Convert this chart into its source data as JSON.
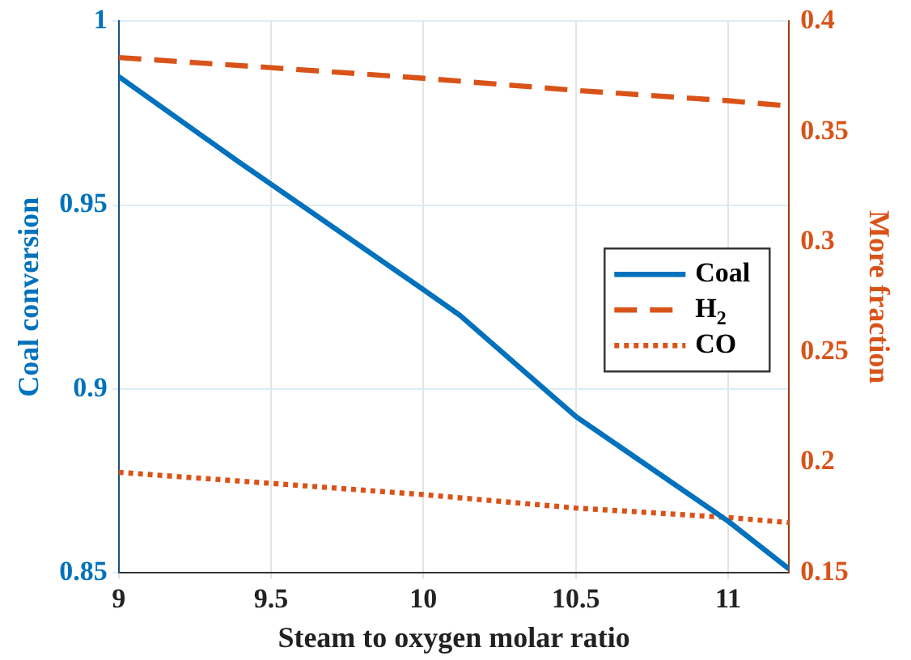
{
  "chart_data": {
    "type": "line",
    "xlabel": "Steam to oxygen molar ratio",
    "ylabel": "Coal conversion",
    "y2label": "More fraction",
    "xlim": [
      9,
      11.2
    ],
    "xticks": [
      9,
      9.5,
      10,
      10.5,
      11
    ],
    "ylim": [
      0.85,
      1
    ],
    "yticks": [
      0.85,
      0.9,
      0.95,
      1
    ],
    "y2lim": [
      0.15,
      0.4
    ],
    "y2ticks": [
      0.15,
      0.2,
      0.25,
      0.3,
      0.35,
      0.4
    ],
    "grid": true,
    "legend": "right",
    "marker": "none",
    "series": [
      {
        "name": "Coal",
        "color": "#0072bd",
        "line_style": "solid",
        "x": [
          9,
          9.39,
          10,
          10.12,
          10.5,
          11,
          11.2
        ],
        "values": [
          0.985,
          0.962,
          0.927,
          0.92,
          0.8925,
          0.864,
          0.851
        ]
      },
      {
        "name": "H$_{2}$",
        "color": "#d95319",
        "line_style": "dashed",
        "axis": "y2",
        "x": [
          9,
          9.5,
          10,
          10.5,
          11,
          11.2
        ],
        "values": [
          0.3836,
          0.379,
          0.3742,
          0.3687,
          0.364,
          0.3616
        ]
      },
      {
        "name": "CO",
        "color": "#d95319",
        "line_style": "dotted",
        "axis": "y2",
        "x": [
          9,
          9.5,
          10,
          10.5,
          11,
          11.2
        ],
        "values": [
          0.1955,
          0.1905,
          0.1854,
          0.1793,
          0.175,
          0.1727
        ]
      }
    ]
  }
}
